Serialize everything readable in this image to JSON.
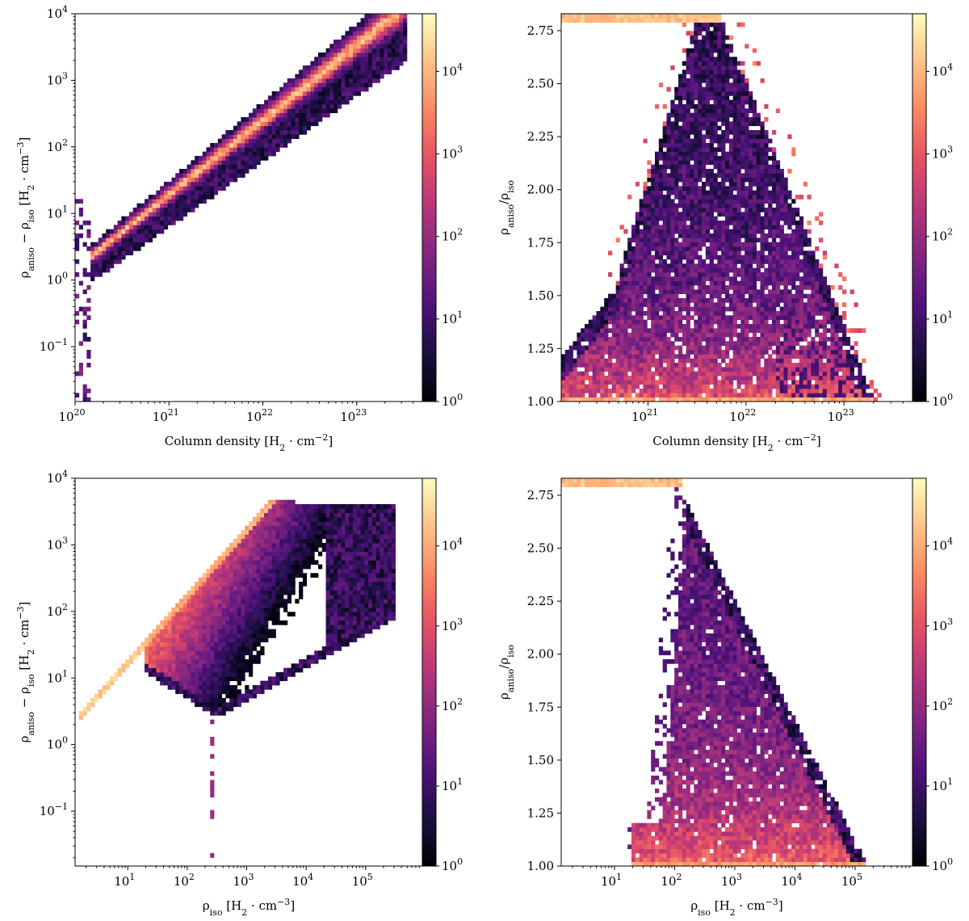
{
  "colormap": {
    "name": "magma",
    "stops": [
      "#000004",
      "#1c1044",
      "#4f127b",
      "#812581",
      "#b5367a",
      "#e55064",
      "#fb8761",
      "#fec287",
      "#fcfdbf"
    ]
  },
  "chart_data": [
    {
      "type": "heatmap",
      "id": "top-left",
      "title": "",
      "xlabel_parts": [
        "Column density [H",
        "2",
        " · cm",
        "−2",
        "]"
      ],
      "ylabel_parts": [
        "ρ",
        "aniso",
        " − ρ",
        "iso",
        " [H",
        "2",
        " · cm",
        "−3",
        "]"
      ],
      "xscale": "log",
      "yscale": "log",
      "xlim": [
        1e+20,
        5e+23
      ],
      "ylim": [
        0.015,
        10000
      ],
      "x_ticks": [
        {
          "value": 1e+20,
          "base": "10",
          "exp": "20"
        },
        {
          "value": 1e+21,
          "base": "10",
          "exp": "21"
        },
        {
          "value": 1e+22,
          "base": "10",
          "exp": "22"
        },
        {
          "value": 1e+23,
          "base": "10",
          "exp": "23"
        }
      ],
      "y_ticks": [
        {
          "value": 0.1,
          "base": "10",
          "exp": "−1"
        },
        {
          "value": 1,
          "base": "10",
          "exp": "0"
        },
        {
          "value": 10,
          "base": "10",
          "exp": "1"
        },
        {
          "value": 100,
          "base": "10",
          "exp": "2"
        },
        {
          "value": 1000,
          "base": "10",
          "exp": "3"
        },
        {
          "value": 10000,
          "base": "10",
          "exp": "4"
        }
      ],
      "colorbar": {
        "scale": "log",
        "range": [
          1,
          50000
        ],
        "ticks": [
          {
            "value": 1,
            "base": "10",
            "exp": "0"
          },
          {
            "value": 10,
            "base": "10",
            "exp": "1"
          },
          {
            "value": 100,
            "base": "10",
            "exp": "2"
          },
          {
            "value": 1000,
            "base": "10",
            "exp": "3"
          },
          {
            "value": 10000,
            "base": "10",
            "exp": "4"
          }
        ]
      },
      "distribution": "Counts follow a narrow band rising from ~3 at 1e20.3 to ~1e4 at 1e23.5; band peak counts ~5e4, with sparse low-count cells at x≈1e20."
    },
    {
      "type": "heatmap",
      "id": "top-right",
      "title": "",
      "xlabel_parts": [
        "Column density [H",
        "2",
        " · cm",
        "−2",
        "]"
      ],
      "ylabel_parts": [
        "ρ",
        "aniso",
        "/ρ",
        "iso"
      ],
      "xscale": "log",
      "yscale": "linear",
      "xlim": [
        1.3e+20,
        5e+23
      ],
      "ylim": [
        1.0,
        2.83
      ],
      "x_ticks": [
        {
          "value": 1e+21,
          "base": "10",
          "exp": "21"
        },
        {
          "value": 1e+22,
          "base": "10",
          "exp": "22"
        },
        {
          "value": 1e+23,
          "base": "10",
          "exp": "23"
        }
      ],
      "y_ticks": [
        {
          "value": 1.0,
          "label": "1.00"
        },
        {
          "value": 1.25,
          "label": "1.25"
        },
        {
          "value": 1.5,
          "label": "1.50"
        },
        {
          "value": 1.75,
          "label": "1.75"
        },
        {
          "value": 2.0,
          "label": "2.00"
        },
        {
          "value": 2.25,
          "label": "2.25"
        },
        {
          "value": 2.5,
          "label": "2.50"
        },
        {
          "value": 2.75,
          "label": "2.75"
        }
      ],
      "colorbar": {
        "scale": "log",
        "range": [
          1,
          50000
        ],
        "ticks": [
          {
            "value": 1,
            "base": "10",
            "exp": "0"
          },
          {
            "value": 10,
            "base": "10",
            "exp": "1"
          },
          {
            "value": 100,
            "base": "10",
            "exp": "2"
          },
          {
            "value": 1000,
            "base": "10",
            "exp": "3"
          },
          {
            "value": 10000,
            "base": "10",
            "exp": "4"
          }
        ]
      },
      "distribution": "Broad peaked distribution centred near 4e21, counts highest (~1e4) near y=1.0 and along top edge y≈2.82; ratio decreases toward 1.0 at high column density (~3e23)."
    },
    {
      "type": "heatmap",
      "id": "bottom-left",
      "title": "",
      "xlabel_parts": [
        "ρ",
        "iso",
        " [H",
        "2",
        " · cm",
        "−3",
        "]"
      ],
      "ylabel_parts": [
        "ρ",
        "aniso",
        " − ρ",
        "iso",
        " [H",
        "2",
        " · cm",
        "−3",
        "]"
      ],
      "xscale": "log",
      "yscale": "log",
      "xlim": [
        1.3,
        900000.0
      ],
      "ylim": [
        0.015,
        10000
      ],
      "x_ticks": [
        {
          "value": 10,
          "base": "10",
          "exp": "1"
        },
        {
          "value": 100,
          "base": "10",
          "exp": "2"
        },
        {
          "value": 1000,
          "base": "10",
          "exp": "3"
        },
        {
          "value": 10000,
          "base": "10",
          "exp": "4"
        },
        {
          "value": 100000,
          "base": "10",
          "exp": "5"
        }
      ],
      "y_ticks": [
        {
          "value": 0.1,
          "base": "10",
          "exp": "−1"
        },
        {
          "value": 1,
          "base": "10",
          "exp": "0"
        },
        {
          "value": 10,
          "base": "10",
          "exp": "1"
        },
        {
          "value": 100,
          "base": "10",
          "exp": "2"
        },
        {
          "value": 1000,
          "base": "10",
          "exp": "3"
        },
        {
          "value": 10000,
          "base": "10",
          "exp": "4"
        }
      ],
      "colorbar": {
        "scale": "log",
        "range": [
          1,
          70000
        ],
        "ticks": [
          {
            "value": 1,
            "base": "10",
            "exp": "0"
          },
          {
            "value": 10,
            "base": "10",
            "exp": "1"
          },
          {
            "value": 100,
            "base": "10",
            "exp": "2"
          },
          {
            "value": 1000,
            "base": "10",
            "exp": "3"
          },
          {
            "value": 10000,
            "base": "10",
            "exp": "4"
          }
        ]
      },
      "distribution": "Wedge bounded above by y≈1.8·x from x≈2 to x≈3e3 (highest counts along this diagonal), fanning to lower values at high x up to 3e5; low-count vertical streak near x≈250."
    },
    {
      "type": "heatmap",
      "id": "bottom-right",
      "title": "",
      "xlabel_parts": [
        "ρ",
        "iso",
        " [H",
        "2",
        " · cm",
        "−3",
        "]"
      ],
      "ylabel_parts": [
        "ρ",
        "aniso",
        "/ρ",
        "iso"
      ],
      "xscale": "log",
      "yscale": "linear",
      "xlim": [
        1.3,
        900000.0
      ],
      "ylim": [
        1.0,
        2.83
      ],
      "x_ticks": [
        {
          "value": 10,
          "base": "10",
          "exp": "1"
        },
        {
          "value": 100,
          "base": "10",
          "exp": "2"
        },
        {
          "value": 1000,
          "base": "10",
          "exp": "3"
        },
        {
          "value": 10000,
          "base": "10",
          "exp": "4"
        },
        {
          "value": 100000,
          "base": "10",
          "exp": "5"
        }
      ],
      "y_ticks": [
        {
          "value": 1.0,
          "label": "1.00"
        },
        {
          "value": 1.25,
          "label": "1.25"
        },
        {
          "value": 1.5,
          "label": "1.50"
        },
        {
          "value": 1.75,
          "label": "1.75"
        },
        {
          "value": 2.0,
          "label": "2.00"
        },
        {
          "value": 2.25,
          "label": "2.25"
        },
        {
          "value": 2.5,
          "label": "2.50"
        },
        {
          "value": 2.75,
          "label": "2.75"
        }
      ],
      "colorbar": {
        "scale": "log",
        "range": [
          1,
          70000
        ],
        "ticks": [
          {
            "value": 1,
            "base": "10",
            "exp": "0"
          },
          {
            "value": 10,
            "base": "10",
            "exp": "1"
          },
          {
            "value": 100,
            "base": "10",
            "exp": "2"
          },
          {
            "value": 1000,
            "base": "10",
            "exp": "3"
          },
          {
            "value": 10000,
            "base": "10",
            "exp": "4"
          }
        ]
      },
      "distribution": "Distribution starts near x≈50–150 at y up to 2.8 and decays toward y=1.0 by x≈5e5; highest counts along top edge y≈2.82 for x<100 and near y=1.0."
    }
  ]
}
